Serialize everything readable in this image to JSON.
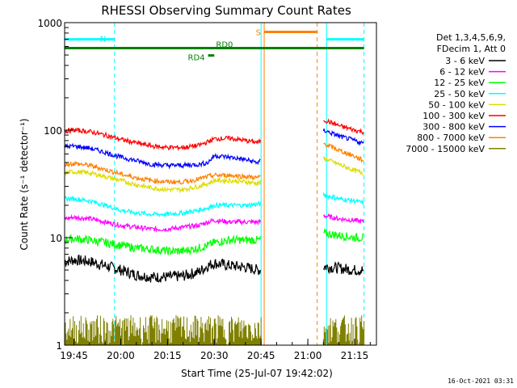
{
  "chart_data": {
    "type": "line",
    "title": "RHESSI Observing Summary Count Rates",
    "xlabel": "Start Time (25-Jul-07 19:42:02)",
    "ylabel": "Count Rate (s⁻¹ detector⁻¹)",
    "yscale": "log",
    "ylim": [
      1,
      1000
    ],
    "xlim": [
      "19:42",
      "21:22"
    ],
    "xticks": [
      "19:45",
      "20:00",
      "20:15",
      "20:30",
      "20:45",
      "21:00",
      "21:15"
    ],
    "yticks": [
      "1",
      "10",
      "100",
      "1000"
    ],
    "legend_header": [
      "Det 1,3,4,5,6,9,",
      "FDecim 1, Att 0"
    ],
    "legend_position": "right",
    "series": [
      {
        "name": "3 - 6 keV",
        "color": "#000000",
        "points": [
          [
            "19:42",
            6.0
          ],
          [
            "19:45",
            6.2
          ],
          [
            "19:50",
            6.0
          ],
          [
            "19:55",
            5.5
          ],
          [
            "20:00",
            5.0
          ],
          [
            "20:05",
            4.5
          ],
          [
            "20:10",
            4.3
          ],
          [
            "20:15",
            4.3
          ],
          [
            "20:20",
            4.4
          ],
          [
            "20:25",
            4.8
          ],
          [
            "20:28",
            5.5
          ],
          [
            "20:30",
            5.8
          ],
          [
            "20:35",
            5.5
          ],
          [
            "20:40",
            5.3
          ],
          [
            "20:44",
            5.0
          ],
          [
            "21:05",
            5.4
          ],
          [
            "21:10",
            5.2
          ],
          [
            "21:15",
            5.0
          ],
          [
            "21:18",
            5.0
          ]
        ]
      },
      {
        "name": "6 - 12 keV",
        "color": "#ff00ff",
        "points": [
          [
            "19:42",
            15
          ],
          [
            "19:45",
            15.5
          ],
          [
            "19:50",
            15
          ],
          [
            "19:55",
            14
          ],
          [
            "20:00",
            13
          ],
          [
            "20:05",
            12.5
          ],
          [
            "20:10",
            12
          ],
          [
            "20:15",
            12
          ],
          [
            "20:20",
            12.5
          ],
          [
            "20:25",
            13
          ],
          [
            "20:28",
            14
          ],
          [
            "20:30",
            14.5
          ],
          [
            "20:35",
            14
          ],
          [
            "20:40",
            14
          ],
          [
            "20:44",
            14
          ],
          [
            "21:05",
            16
          ],
          [
            "21:10",
            15
          ],
          [
            "21:15",
            14.5
          ],
          [
            "21:18",
            14
          ]
        ]
      },
      {
        "name": "12 - 25 keV",
        "color": "#00ff00",
        "points": [
          [
            "19:42",
            9.5
          ],
          [
            "19:45",
            9.8
          ],
          [
            "19:50",
            9.5
          ],
          [
            "19:55",
            9
          ],
          [
            "20:00",
            8.5
          ],
          [
            "20:05",
            8
          ],
          [
            "20:10",
            7.8
          ],
          [
            "20:15",
            7.5
          ],
          [
            "20:20",
            7.5
          ],
          [
            "20:25",
            8
          ],
          [
            "20:28",
            8.5
          ],
          [
            "20:30",
            9
          ],
          [
            "20:35",
            9.5
          ],
          [
            "20:40",
            9.5
          ],
          [
            "20:44",
            9.5
          ],
          [
            "21:05",
            11
          ],
          [
            "21:10",
            10.5
          ],
          [
            "21:15",
            10
          ],
          [
            "21:18",
            10
          ]
        ]
      },
      {
        "name": "25 - 50 keV",
        "color": "#00ffff",
        "points": [
          [
            "19:42",
            23
          ],
          [
            "19:45",
            23
          ],
          [
            "19:50",
            22
          ],
          [
            "19:55",
            20
          ],
          [
            "20:00",
            18
          ],
          [
            "20:05",
            17
          ],
          [
            "20:10",
            16.5
          ],
          [
            "20:15",
            16.5
          ],
          [
            "20:20",
            17
          ],
          [
            "20:25",
            18
          ],
          [
            "20:28",
            19
          ],
          [
            "20:30",
            20
          ],
          [
            "20:35",
            20
          ],
          [
            "20:40",
            20
          ],
          [
            "20:44",
            20.5
          ],
          [
            "21:05",
            25
          ],
          [
            "21:10",
            23
          ],
          [
            "21:15",
            22
          ],
          [
            "21:18",
            21
          ]
        ]
      },
      {
        "name": "50 - 100 keV",
        "color": "#dddd00",
        "points": [
          [
            "19:42",
            40
          ],
          [
            "19:45",
            41
          ],
          [
            "19:50",
            40
          ],
          [
            "19:55",
            37
          ],
          [
            "20:00",
            34
          ],
          [
            "20:05",
            31
          ],
          [
            "20:10",
            29
          ],
          [
            "20:15",
            28
          ],
          [
            "20:20",
            28
          ],
          [
            "20:25",
            30
          ],
          [
            "20:28",
            32
          ],
          [
            "20:30",
            34
          ],
          [
            "20:35",
            34
          ],
          [
            "20:40",
            33
          ],
          [
            "20:44",
            32
          ],
          [
            "21:05",
            55
          ],
          [
            "21:10",
            48
          ],
          [
            "21:15",
            42
          ],
          [
            "21:18",
            40
          ]
        ]
      },
      {
        "name": "100 - 300 keV",
        "color": "#ff0000",
        "points": [
          [
            "19:42",
            98
          ],
          [
            "19:45",
            100
          ],
          [
            "19:50",
            97
          ],
          [
            "19:55",
            90
          ],
          [
            "20:00",
            82
          ],
          [
            "20:05",
            76
          ],
          [
            "20:10",
            71
          ],
          [
            "20:15",
            69
          ],
          [
            "20:20",
            69
          ],
          [
            "20:25",
            72
          ],
          [
            "20:28",
            78
          ],
          [
            "20:30",
            83
          ],
          [
            "20:35",
            84
          ],
          [
            "20:40",
            80
          ],
          [
            "20:44",
            77
          ],
          [
            "21:05",
            125
          ],
          [
            "21:10",
            110
          ],
          [
            "21:15",
            100
          ],
          [
            "21:18",
            96
          ]
        ]
      },
      {
        "name": "300 - 800 keV",
        "color": "#0000ff",
        "points": [
          [
            "19:42",
            70
          ],
          [
            "19:45",
            71
          ],
          [
            "19:50",
            68
          ],
          [
            "19:55",
            62
          ],
          [
            "20:00",
            56
          ],
          [
            "20:05",
            52
          ],
          [
            "20:10",
            48
          ],
          [
            "20:15",
            47
          ],
          [
            "20:20",
            47
          ],
          [
            "20:25",
            48
          ],
          [
            "20:28",
            50
          ],
          [
            "20:30",
            58
          ],
          [
            "20:35",
            56
          ],
          [
            "20:40",
            53
          ],
          [
            "20:44",
            50
          ],
          [
            "21:05",
            100
          ],
          [
            "21:10",
            88
          ],
          [
            "21:15",
            80
          ],
          [
            "21:18",
            75
          ]
        ]
      },
      {
        "name": "800 - 7000 keV",
        "color": "#ff8000",
        "points": [
          [
            "19:42",
            48
          ],
          [
            "19:45",
            49
          ],
          [
            "19:50",
            47
          ],
          [
            "19:55",
            43
          ],
          [
            "20:00",
            39
          ],
          [
            "20:05",
            36
          ],
          [
            "20:10",
            34
          ],
          [
            "20:15",
            33
          ],
          [
            "20:20",
            33
          ],
          [
            "20:25",
            35
          ],
          [
            "20:28",
            37
          ],
          [
            "20:30",
            38
          ],
          [
            "20:35",
            38
          ],
          [
            "20:40",
            37
          ],
          [
            "20:44",
            36
          ],
          [
            "21:05",
            75
          ],
          [
            "21:10",
            65
          ],
          [
            "21:15",
            57
          ],
          [
            "21:18",
            52
          ]
        ]
      },
      {
        "name": "7000 - 15000 keV",
        "color": "#808000",
        "points": [
          [
            "19:42",
            1.6
          ],
          [
            "19:50",
            1.6
          ],
          [
            "19:58",
            1.6
          ],
          [
            "20:25",
            1.6
          ],
          [
            "20:36",
            1.6
          ],
          [
            "21:04",
            1.6
          ],
          [
            "21:12",
            1.6
          ],
          [
            "21:18",
            1.6
          ]
        ]
      }
    ],
    "flags": [
      {
        "label": "N",
        "color": "#00ffff",
        "segments": [
          [
            "19:42",
            "19:58"
          ],
          [
            "21:06",
            "21:18"
          ]
        ],
        "level": 700
      },
      {
        "label": "S",
        "color": "#ff8000",
        "segments": [
          [
            "20:46",
            "21:03"
          ]
        ],
        "level": 820
      },
      {
        "label": "RD0",
        "color": "#008000",
        "segments": [
          [
            "19:42",
            "21:18"
          ]
        ],
        "level": 580
      },
      {
        "label": "RD4",
        "color": "#008000",
        "segments": [
          [
            "20:28",
            "20:30"
          ]
        ],
        "level": 495
      }
    ],
    "vlines": [
      {
        "time": "19:42",
        "color": "#00ffff",
        "style": "solid"
      },
      {
        "time": "19:58",
        "color": "#00ffff",
        "style": "dashed"
      },
      {
        "time": "20:45",
        "color": "#00ffff",
        "style": "solid"
      },
      {
        "time": "20:46",
        "color": "#ff8000",
        "style": "solid"
      },
      {
        "time": "21:03",
        "color": "#ff8000",
        "style": "dashed"
      },
      {
        "time": "21:06",
        "color": "#00ffff",
        "style": "solid"
      },
      {
        "time": "21:18",
        "color": "#00ffff",
        "style": "dashed"
      }
    ],
    "gaps": [
      [
        "20:45",
        "21:05"
      ]
    ]
  },
  "footer": {
    "timestamp": "16-Oct-2021 03:31"
  }
}
